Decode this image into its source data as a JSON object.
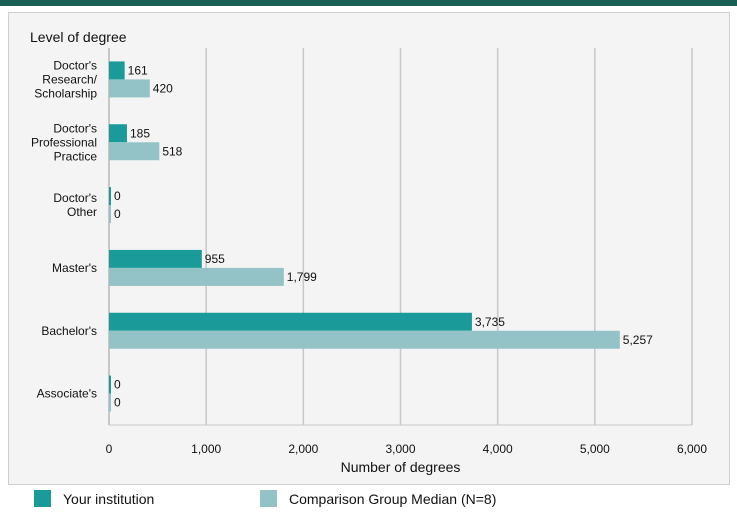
{
  "chart_data": {
    "type": "bar",
    "orientation": "horizontal",
    "ylabel": "Level of degree",
    "xlabel": "Number of degrees",
    "categories": [
      [
        "Doctor's",
        "Research/",
        "Scholarship"
      ],
      [
        "Doctor's",
        "Professional",
        "Practice"
      ],
      [
        "Doctor's",
        "Other"
      ],
      [
        "Master's"
      ],
      [
        "Bachelor's"
      ],
      [
        "Associate's"
      ]
    ],
    "series": [
      {
        "name": "Your institution",
        "color": "#1a9a98",
        "values": [
          161,
          185,
          0,
          955,
          3735,
          0
        ],
        "labels": [
          "161",
          "185",
          "0",
          "955",
          "3,735",
          "0"
        ]
      },
      {
        "name": "Comparison Group Median (N=8)",
        "color": "#93c3c7",
        "values": [
          420,
          518,
          0,
          1799,
          5257,
          0
        ],
        "labels": [
          "420",
          "518",
          "0",
          "1,799",
          "5,257",
          "0"
        ]
      }
    ],
    "xlim": [
      0,
      6000
    ],
    "xticks": [
      0,
      1000,
      2000,
      3000,
      4000,
      5000,
      6000
    ],
    "xtick_labels": [
      "0",
      "1,000",
      "2,000",
      "3,000",
      "4,000",
      "5,000",
      "6,000"
    ],
    "grid": true,
    "legend_position": "bottom"
  }
}
